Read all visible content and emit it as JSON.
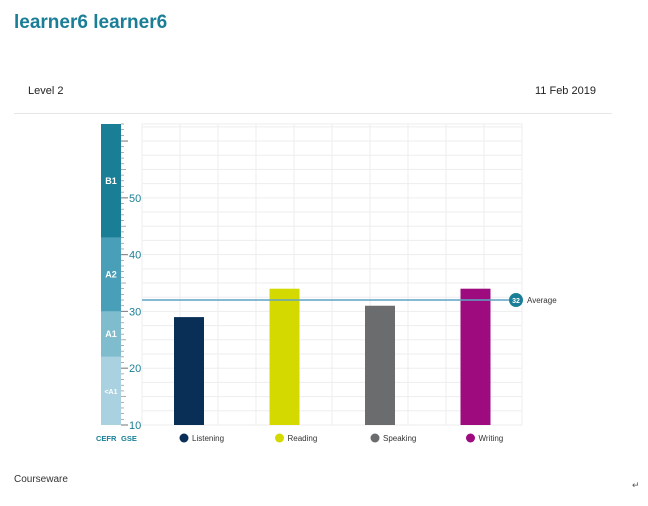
{
  "page": {
    "title": "learner6 learner6",
    "level": "Level 2",
    "date": "11 Feb 2019",
    "section_label": "Courseware",
    "para_mark": "↵"
  },
  "colors": {
    "title": "#1a7f96",
    "average_line": "#5fa3c4",
    "average_badge": "#1a7f96"
  },
  "chart_data": {
    "type": "bar",
    "categories": [
      "Listening",
      "Reading",
      "Speaking",
      "Writing"
    ],
    "values": [
      29,
      34,
      31,
      34
    ],
    "colors": [
      "#0a2f57",
      "#d4da00",
      "#6a6c6e",
      "#9e0b7f"
    ],
    "ylim": [
      10,
      63
    ],
    "yticks": [
      10,
      20,
      30,
      40,
      50
    ],
    "grid": true,
    "average": {
      "value": 32,
      "label": "32",
      "text": "Average"
    },
    "cefr_bands": [
      {
        "label": "<A1",
        "from": 10,
        "to": 22,
        "color": "#a9d1df"
      },
      {
        "label": "A1",
        "from": 22,
        "to": 30,
        "color": "#7fbccd"
      },
      {
        "label": "A2",
        "from": 30,
        "to": 43,
        "color": "#4a9fb8"
      },
      {
        "label": "B1",
        "from": 43,
        "to": 63,
        "color": "#1a7f96"
      }
    ],
    "scale_labels": {
      "cefr": "CEFR",
      "gse": "GSE"
    }
  }
}
